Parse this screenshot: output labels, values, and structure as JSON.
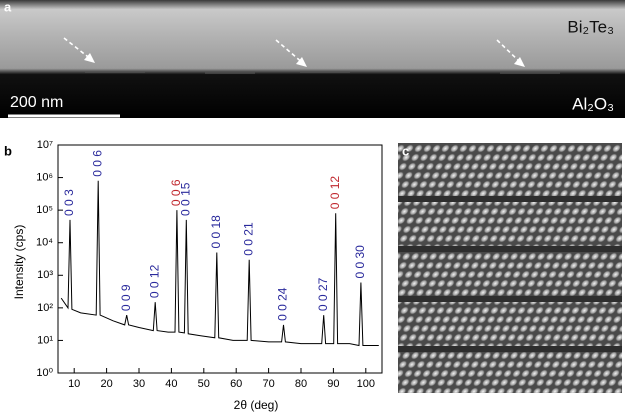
{
  "panel_a": {
    "label": "a",
    "film": "Bi₂Te₃",
    "substrate": "Al₂O₃",
    "scale_bar": "200 nm"
  },
  "panel_c": {
    "label": "c"
  },
  "chart_data": {
    "type": "line",
    "label": "b",
    "xlabel": "2θ (deg)",
    "ylabel": "Intensity (cps)",
    "log_scale": true,
    "color": "#000000",
    "xlim": [
      5,
      105
    ],
    "xticks": [
      10,
      20,
      30,
      40,
      50,
      60,
      70,
      80,
      90,
      100
    ],
    "ylim": [
      1,
      10000000
    ],
    "yticks": [
      {
        "value": 1,
        "label": "10⁰"
      },
      {
        "value": 10,
        "label": "10¹"
      },
      {
        "value": 100,
        "label": "10²"
      },
      {
        "value": 1000,
        "label": "10³"
      },
      {
        "value": 10000,
        "label": "10⁴"
      },
      {
        "value": 100000,
        "label": "10⁵"
      },
      {
        "value": 1000000,
        "label": "10⁶"
      },
      {
        "value": 10000000,
        "label": "10⁷"
      }
    ],
    "x": [
      6,
      8.1,
      8.7,
      9.3,
      12,
      16.8,
      17.4,
      18,
      22,
      25.6,
      26.2,
      26.8,
      30,
      34.4,
      35,
      35.6,
      39,
      41.1,
      41.7,
      42.3,
      44,
      44.6,
      45.2,
      49,
      53.4,
      54,
      54.6,
      59,
      63.4,
      64,
      64.6,
      70,
      74,
      74.6,
      75.2,
      80,
      86.4,
      87,
      87.6,
      90.1,
      90.7,
      91.3,
      95,
      97.9,
      98.5,
      99.1,
      104
    ],
    "values": [
      200,
      100,
      50000,
      90,
      70,
      60,
      800000,
      60,
      40,
      30,
      60,
      30,
      25,
      20,
      150,
      20,
      18,
      18,
      100000,
      18,
      17,
      50000,
      16,
      14,
      12,
      5000,
      12,
      10,
      10,
      3000,
      10,
      9,
      9,
      30,
      9,
      8,
      8,
      60,
      8,
      8,
      80000,
      8,
      8,
      7,
      600,
      7,
      7
    ],
    "annotations": [
      {
        "text": "0 0 3",
        "x": 8.7,
        "color": "#2a2a9c"
      },
      {
        "text": "0 0 6",
        "x": 17.4,
        "color": "#2a2a9c"
      },
      {
        "text": "0 0 9",
        "x": 26.2,
        "color": "#2a2a9c"
      },
      {
        "text": "0 0 12",
        "x": 35,
        "color": "#2a2a9c"
      },
      {
        "text": "0 0 6",
        "x": 41.7,
        "color": "#c0272d"
      },
      {
        "text": "0 0 15",
        "x": 44.6,
        "color": "#2a2a9c"
      },
      {
        "text": "0 0 18",
        "x": 54,
        "color": "#2a2a9c"
      },
      {
        "text": "0 0 21",
        "x": 64,
        "color": "#2a2a9c"
      },
      {
        "text": "0 0 24",
        "x": 74.6,
        "color": "#2a2a9c"
      },
      {
        "text": "0 0 27",
        "x": 87,
        "color": "#2a2a9c"
      },
      {
        "text": "0 0 12",
        "x": 90.7,
        "color": "#c0272d"
      },
      {
        "text": "0 0 30",
        "x": 98.5,
        "color": "#2a2a9c"
      }
    ]
  }
}
